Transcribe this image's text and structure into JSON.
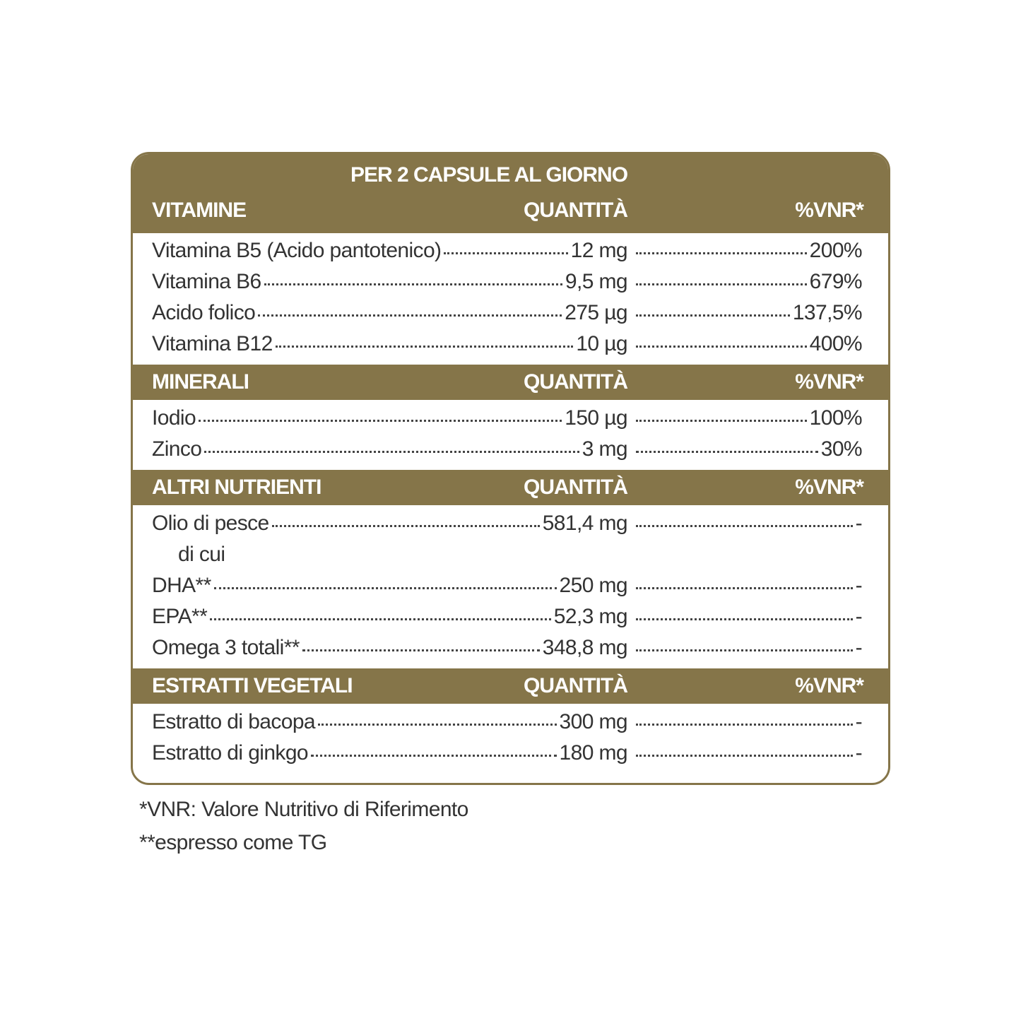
{
  "title": "PER 2 CAPSULE AL GIORNO",
  "sections": [
    {
      "heading": "VITAMINE",
      "quantity_heading": "QUANTITÀ",
      "vnr_heading": "%VNR*",
      "rows": [
        {
          "name": "Vitamina B5 (Acido pantotenico)",
          "quantity": "12 mg",
          "vnr": "200%"
        },
        {
          "name": "Vitamina B6",
          "quantity": "9,5 mg",
          "vnr": "679%"
        },
        {
          "name": "Acido folico",
          "quantity": "275 µg",
          "vnr": "137,5%"
        },
        {
          "name": "Vitamina B12",
          "quantity": "10 µg",
          "vnr": "400%"
        }
      ]
    },
    {
      "heading": "MINERALI",
      "quantity_heading": "QUANTITÀ",
      "vnr_heading": "%VNR*",
      "rows": [
        {
          "name": "Iodio",
          "quantity": "150 µg",
          "vnr": "100%"
        },
        {
          "name": "Zinco",
          "quantity": "3 mg",
          "vnr": "30%"
        }
      ]
    },
    {
      "heading": "ALTRI NUTRIENTI",
      "quantity_heading": "QUANTITÀ",
      "vnr_heading": "%VNR*",
      "rows": [
        {
          "name": "Olio di pesce",
          "quantity": "581,4 mg",
          "vnr": "-"
        },
        {
          "name": "di cui"
        },
        {
          "name": "DHA**",
          "quantity": "250 mg",
          "vnr": "-"
        },
        {
          "name": "EPA**",
          "quantity": "52,3 mg",
          "vnr": "-"
        },
        {
          "name": "Omega 3 totali**",
          "quantity": "348,8 mg",
          "vnr": "-"
        }
      ]
    },
    {
      "heading": "ESTRATTI VEGETALI",
      "quantity_heading": "QUANTITÀ",
      "vnr_heading": "%VNR*",
      "rows": [
        {
          "name": "Estratto di bacopa",
          "quantity": "300 mg",
          "vnr": "-"
        },
        {
          "name": "Estratto di ginkgo",
          "quantity": "180 mg",
          "vnr": "-"
        }
      ]
    }
  ],
  "footnotes": [
    "*VNR: Valore Nutritivo di Riferimento",
    "**espresso come TG"
  ]
}
